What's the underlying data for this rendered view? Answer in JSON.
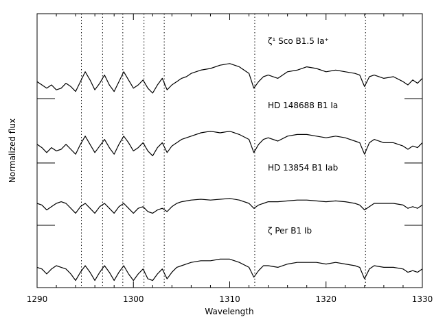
{
  "chart_data": {
    "type": "line",
    "title": "",
    "xlabel": "Wavelength",
    "ylabel": "Normalized flux",
    "xlim": [
      1290,
      1330
    ],
    "x_ticks": [
      1290,
      1300,
      1310,
      1320,
      1330
    ],
    "x_tick_labels": [
      "1290",
      "1300",
      "1310",
      "1320",
      "1330"
    ],
    "grid": false,
    "reference_lines_x": [
      1294.6,
      1296.8,
      1298.9,
      1301.1,
      1303.2,
      1312.6,
      1324.1
    ],
    "series": [
      {
        "name": "ζ¹ Sco B1.5 Ia⁺",
        "x": [
          1290,
          1290.5,
          1291,
          1291.5,
          1292,
          1292.5,
          1293,
          1293.5,
          1294,
          1294.5,
          1295,
          1295.5,
          1296,
          1296.5,
          1297,
          1297.5,
          1298,
          1298.5,
          1299,
          1299.5,
          1300,
          1300.5,
          1301,
          1301.5,
          1302,
          1302.5,
          1303,
          1303.5,
          1304,
          1304.5,
          1305,
          1305.5,
          1306,
          1307,
          1308,
          1309,
          1310,
          1311,
          1312,
          1312.5,
          1313,
          1313.5,
          1314,
          1315,
          1316,
          1317,
          1318,
          1319,
          1320,
          1321,
          1322,
          1323,
          1323.5,
          1324,
          1324.5,
          1325,
          1326,
          1327,
          1328,
          1328.5,
          1329,
          1329.5,
          1330
        ],
        "y": [
          0.94,
          0.9,
          0.86,
          0.9,
          0.84,
          0.86,
          0.92,
          0.88,
          0.82,
          0.94,
          1.06,
          0.96,
          0.84,
          0.92,
          1.02,
          0.9,
          0.82,
          0.94,
          1.06,
          0.96,
          0.86,
          0.9,
          0.96,
          0.86,
          0.8,
          0.9,
          0.98,
          0.84,
          0.9,
          0.94,
          0.98,
          1.0,
          1.04,
          1.08,
          1.1,
          1.14,
          1.16,
          1.12,
          1.04,
          0.86,
          0.94,
          1.0,
          1.02,
          0.98,
          1.06,
          1.08,
          1.12,
          1.1,
          1.06,
          1.08,
          1.06,
          1.04,
          1.02,
          0.88,
          1.0,
          1.02,
          0.98,
          1.0,
          0.94,
          0.9,
          0.96,
          0.92,
          0.98
        ]
      },
      {
        "name": "HD 148688 B1 Ia",
        "x": [
          1290,
          1290.5,
          1291,
          1291.5,
          1292,
          1292.5,
          1293,
          1293.5,
          1294,
          1294.5,
          1295,
          1295.5,
          1296,
          1296.5,
          1297,
          1297.5,
          1298,
          1298.5,
          1299,
          1299.5,
          1300,
          1300.5,
          1301,
          1301.5,
          1302,
          1302.5,
          1303,
          1303.5,
          1304,
          1304.5,
          1305,
          1305.5,
          1306,
          1307,
          1308,
          1309,
          1310,
          1311,
          1312,
          1312.5,
          1313,
          1313.5,
          1314,
          1315,
          1316,
          1317,
          1318,
          1319,
          1320,
          1321,
          1322,
          1323,
          1323.5,
          1324,
          1324.5,
          1325,
          1326,
          1327,
          1328,
          1328.5,
          1329,
          1329.5,
          1330
        ],
        "y": [
          0.96,
          0.92,
          0.86,
          0.92,
          0.88,
          0.9,
          0.96,
          0.9,
          0.84,
          0.96,
          1.06,
          0.96,
          0.86,
          0.94,
          1.02,
          0.92,
          0.84,
          0.96,
          1.06,
          0.98,
          0.88,
          0.92,
          0.98,
          0.88,
          0.82,
          0.92,
          0.98,
          0.86,
          0.94,
          0.98,
          1.02,
          1.04,
          1.06,
          1.1,
          1.12,
          1.1,
          1.12,
          1.08,
          1.02,
          0.86,
          0.96,
          1.02,
          1.04,
          1.0,
          1.06,
          1.08,
          1.08,
          1.06,
          1.04,
          1.06,
          1.04,
          1.0,
          0.98,
          0.84,
          0.98,
          1.02,
          0.98,
          0.98,
          0.94,
          0.9,
          0.94,
          0.92,
          0.98
        ]
      },
      {
        "name": "HD 13854 B1 Iab",
        "x": [
          1290,
          1290.5,
          1291,
          1291.5,
          1292,
          1292.5,
          1293,
          1293.5,
          1294,
          1294.5,
          1295,
          1295.5,
          1296,
          1296.5,
          1297,
          1297.5,
          1298,
          1298.5,
          1299,
          1299.5,
          1300,
          1300.5,
          1301,
          1301.5,
          1302,
          1302.5,
          1303,
          1303.5,
          1304,
          1304.5,
          1305,
          1305.5,
          1306,
          1307,
          1308,
          1309,
          1310,
          1311,
          1312,
          1312.5,
          1313,
          1313.5,
          1314,
          1315,
          1316,
          1317,
          1318,
          1319,
          1320,
          1321,
          1322,
          1323,
          1323.5,
          1324,
          1324.5,
          1325,
          1326,
          1327,
          1328,
          1328.5,
          1329,
          1329.5,
          1330
        ],
        "y": [
          1.0,
          0.98,
          0.92,
          0.96,
          1.0,
          1.02,
          1.0,
          0.94,
          0.88,
          0.96,
          1.0,
          0.94,
          0.88,
          0.96,
          1.0,
          0.94,
          0.88,
          0.96,
          1.0,
          0.94,
          0.88,
          0.94,
          0.96,
          0.9,
          0.88,
          0.92,
          0.94,
          0.9,
          0.96,
          1.0,
          1.02,
          1.03,
          1.04,
          1.05,
          1.04,
          1.05,
          1.06,
          1.04,
          1.0,
          0.94,
          0.98,
          1.0,
          1.02,
          1.02,
          1.03,
          1.04,
          1.04,
          1.03,
          1.02,
          1.03,
          1.02,
          1.0,
          0.98,
          0.92,
          0.96,
          1.0,
          1.0,
          1.0,
          0.98,
          0.94,
          0.96,
          0.94,
          0.98
        ]
      },
      {
        "name": "ζ Per B1 Ib",
        "x": [
          1290,
          1290.5,
          1291,
          1291.5,
          1292,
          1292.5,
          1293,
          1293.5,
          1294,
          1294.5,
          1295,
          1295.5,
          1296,
          1296.5,
          1297,
          1297.5,
          1298,
          1298.5,
          1299,
          1299.5,
          1300,
          1300.5,
          1301,
          1301.5,
          1302,
          1302.5,
          1303,
          1303.5,
          1304,
          1304.5,
          1305,
          1305.5,
          1306,
          1307,
          1308,
          1309,
          1310,
          1311,
          1312,
          1312.5,
          1313,
          1313.5,
          1314,
          1315,
          1316,
          1317,
          1318,
          1319,
          1320,
          1321,
          1322,
          1323,
          1323.5,
          1324,
          1324.5,
          1325,
          1326,
          1327,
          1328,
          1328.5,
          1329,
          1329.5,
          1330
        ],
        "y": [
          0.98,
          0.96,
          0.9,
          0.96,
          1.0,
          0.98,
          0.96,
          0.9,
          0.82,
          0.92,
          1.0,
          0.92,
          0.82,
          0.92,
          1.0,
          0.92,
          0.82,
          0.92,
          1.0,
          0.9,
          0.82,
          0.9,
          0.96,
          0.84,
          0.82,
          0.9,
          0.96,
          0.84,
          0.92,
          0.98,
          1.0,
          1.02,
          1.04,
          1.06,
          1.06,
          1.08,
          1.08,
          1.04,
          0.98,
          0.86,
          0.94,
          1.0,
          1.0,
          0.98,
          1.02,
          1.04,
          1.04,
          1.04,
          1.02,
          1.04,
          1.02,
          1.0,
          0.98,
          0.84,
          0.96,
          1.0,
          0.98,
          0.98,
          0.96,
          0.92,
          0.94,
          0.92,
          0.96
        ]
      }
    ],
    "continuum_markers": [
      {
        "series_index": 0,
        "y": 1.0
      },
      {
        "series_index": 1,
        "y": 1.0
      },
      {
        "series_index": 2,
        "y": 1.0
      }
    ]
  }
}
